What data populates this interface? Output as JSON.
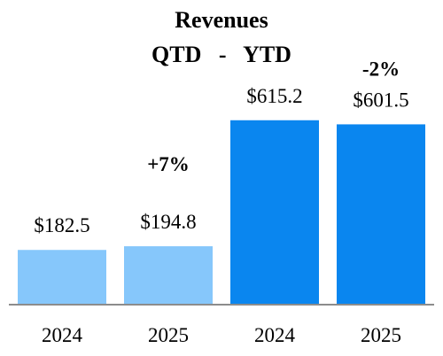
{
  "chart_data": {
    "type": "bar",
    "title": "Revenues",
    "subtitle": "QTD   -   YTD",
    "categories": [
      "2024",
      "2025",
      "2024",
      "2025"
    ],
    "groups": [
      {
        "name": "QTD",
        "x": [
          "2024",
          "2025"
        ],
        "values": [
          182.5,
          194.8
        ],
        "color": "#86c7fb"
      },
      {
        "name": "YTD",
        "x": [
          "2024",
          "2025"
        ],
        "values": [
          615.2,
          601.5
        ],
        "color": "#0a86ef"
      }
    ],
    "values": [
      182.5,
      194.8,
      615.2,
      601.5
    ],
    "value_labels": [
      "$182.5",
      "$194.8",
      "$615.2",
      "$601.5"
    ],
    "change_labels": [
      "+7%",
      "-2%"
    ],
    "xlabel": "",
    "ylabel": "",
    "ylim": [
      0,
      650
    ],
    "grid": false,
    "legend": "none"
  }
}
